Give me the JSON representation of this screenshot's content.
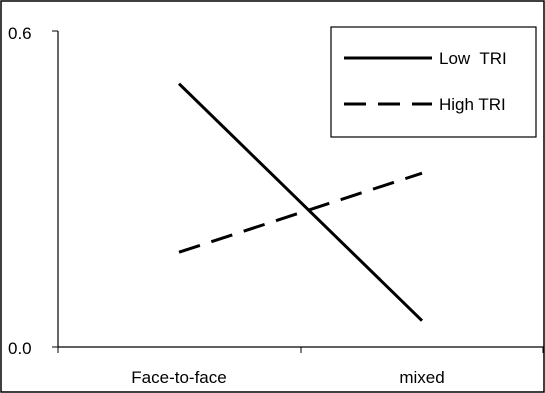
{
  "chart_data": {
    "type": "line",
    "categories": [
      "Face-to-face",
      "mixed"
    ],
    "y_ticks": [
      "0.0",
      "0.6"
    ],
    "ylim": [
      0,
      0.6
    ],
    "grid": false,
    "legend_position": "top-right",
    "series": [
      {
        "name": "Low  TRI",
        "values": [
          0.5,
          0.05
        ],
        "style": "solid",
        "color": "#000000"
      },
      {
        "name": "High TRI",
        "values": [
          0.18,
          0.33
        ],
        "style": "dashed",
        "color": "#000000"
      }
    ]
  }
}
